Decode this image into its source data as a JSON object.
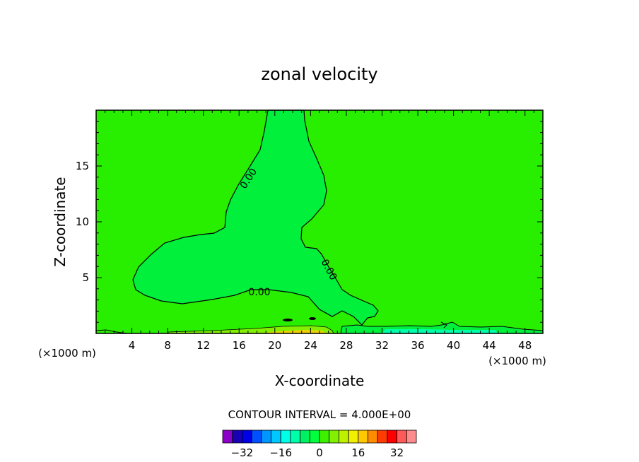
{
  "chart_data": {
    "type": "contour",
    "title": "zonal velocity",
    "xlabel": "X-coordinate",
    "ylabel": "Z-coordinate",
    "x_unit": "(×1000 m)",
    "x_unit_right": "(×1000 m)",
    "xlim": [
      0,
      50
    ],
    "ylim": [
      0,
      20
    ],
    "xticks": [
      4,
      8,
      12,
      16,
      20,
      24,
      28,
      32,
      36,
      40,
      44,
      48
    ],
    "yticks": [
      5,
      10,
      15
    ],
    "contour_labels": [
      "0.00",
      "0.00",
      "0.00"
    ],
    "contour_interval_text": "CONTOUR INTERVAL = 4.000E+00",
    "colorbar": {
      "levels": [
        -36,
        -32,
        -28,
        -24,
        -20,
        -16,
        -12,
        -8,
        -4,
        0,
        4,
        8,
        12,
        16,
        20,
        24,
        28,
        32,
        36
      ],
      "colors": [
        "#8a00c8",
        "#1a00b4",
        "#0000e6",
        "#0050ff",
        "#0096ff",
        "#00c8ff",
        "#00ffe6",
        "#00ffaa",
        "#00f064",
        "#00ff3c",
        "#3cf000",
        "#82f000",
        "#bef000",
        "#f0f000",
        "#ffc800",
        "#ff8c00",
        "#ff3c00",
        "#ff0000",
        "#ff5a5a",
        "#ff8c8c"
      ],
      "tick_labels": [
        "-32",
        "-16",
        "0",
        "16",
        "32"
      ]
    },
    "regions": {
      "background_color": "#28ee00",
      "zero_region_color": "#00f03c",
      "surface_jet_color": "#82f000"
    }
  }
}
